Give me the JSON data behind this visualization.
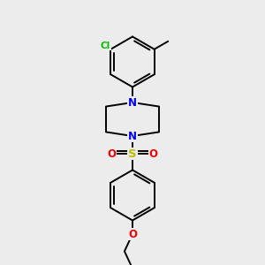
{
  "bg_color": "#ececec",
  "atom_colors": {
    "C": "#000000",
    "N": "#0000ee",
    "O": "#ee0000",
    "S": "#bbbb00",
    "Cl": "#00bb00"
  },
  "bond_color": "#000000",
  "bond_width": 1.4,
  "figsize": [
    3.0,
    3.0
  ],
  "dpi": 100,
  "xlim": [
    0,
    3.0
  ],
  "ylim": [
    0,
    3.0
  ]
}
